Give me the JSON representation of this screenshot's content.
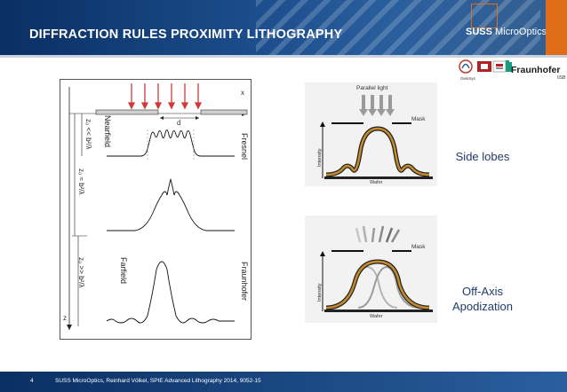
{
  "header": {
    "title": "DIFFRACTION RULES PROXIMITY LITHOGRAPHY",
    "brand_bold": "SUSS",
    "brand_light": "MicroOptics",
    "brand_color": "#e06d1a",
    "bar_color": "#0a2f63"
  },
  "partners": {
    "logo1": "GesiSys",
    "logo2_icon": "crest-icon",
    "fraunhofer": "Fraunhofer",
    "fraunhofer_sub": "IISB"
  },
  "diagram": {
    "axis_x": "x",
    "axis_z": "z",
    "aperture": "d",
    "nearfield": "Nearfield",
    "farfield": "Farfield",
    "fresnel": "Fresnel",
    "fraunhofer": "Fraunhofer",
    "cond1": "z₀ << b²/λ",
    "cond2": "z₀ ≈ b²/λ",
    "cond3": "z₀ >> b²/λ"
  },
  "panel_top": {
    "light": "Parallel light",
    "mask": "Mask",
    "intensity": "Intensity",
    "wafer": "Wafer",
    "label": "Side lobes"
  },
  "panel_bottom": {
    "mask": "Mask",
    "intensity": "Intensity",
    "wafer": "Wafer",
    "label_line1": "Off-Axis",
    "label_line2": "Apodization"
  },
  "footer": {
    "page": "4",
    "text": "SUSS MicroOptics, Reinhard Völkel, SPIE Advanced Lithography 2014, 9052-15"
  }
}
